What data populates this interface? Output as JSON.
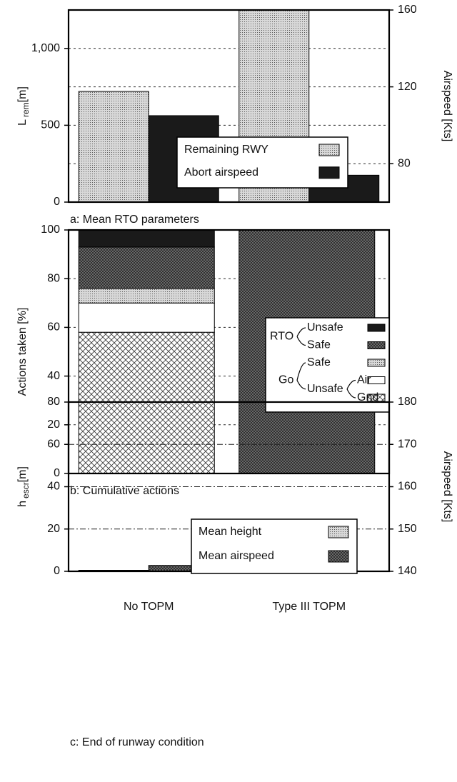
{
  "charts": [
    {
      "type": "bar",
      "caption": "a: Mean RTO parameters",
      "ylabel": "L",
      "ylabel_sub": "rem",
      "ylabel_unit": "[m]",
      "y2label": "Airspeed  [Kts]",
      "categories": [
        null,
        null
      ],
      "series": [
        {
          "name": "Remaining RWY",
          "pattern": "stipple",
          "color": "#c8c8c8",
          "values": [
            720,
            1250
          ]
        },
        {
          "name": "Abort airspeed",
          "pattern": "solid",
          "color": "#1a1a1a",
          "axis": "y2",
          "values": [
            105,
            74
          ]
        }
      ],
      "ylim": [
        0,
        1250
      ],
      "yticks": [
        0,
        500,
        {
          "value": 1000,
          "label": "1,000"
        }
      ],
      "y2lim": [
        60,
        160
      ],
      "y2ticks": [
        80,
        120,
        160
      ],
      "grid": "dotted",
      "legend": "lower-center"
    },
    {
      "type": "stacked-bar",
      "caption": "b: Cumulative actions",
      "ylabel": "Actions taken [%]",
      "categories": [
        null,
        null
      ],
      "series": [
        {
          "name": "Gnd",
          "group": "Go",
          "subgroup": "Unsafe",
          "pattern": "crosshatch",
          "color": "#ffffff",
          "values": [
            58,
            0
          ]
        },
        {
          "name": "Air",
          "group": "Go",
          "subgroup": "Unsafe",
          "pattern": "none",
          "color": "#ffffff",
          "values": [
            12,
            0
          ]
        },
        {
          "name": "Safe",
          "group": "Go",
          "pattern": "stipple",
          "color": "#dcdcdc",
          "values": [
            6,
            0
          ]
        },
        {
          "name": "Safe",
          "group": "RTO",
          "pattern": "dense",
          "color": "#6a6a6a",
          "values": [
            17,
            100
          ]
        },
        {
          "name": "Unsafe",
          "group": "RTO",
          "pattern": "solid",
          "color": "#1a1a1a",
          "values": [
            7,
            0
          ]
        }
      ],
      "ylim": [
        0,
        100
      ],
      "yticks": [
        0,
        20,
        40,
        60,
        80,
        100
      ],
      "grid": "dotted",
      "legend": "right"
    },
    {
      "type": "bar",
      "caption": "c: End of runway condition",
      "ylabel": "h",
      "ylabel_sub": "escr",
      "ylabel_unit": "[m]",
      "y2label": "Airspeed  [Kts]",
      "categories": [
        "No TOPM",
        "Type III TOPM"
      ],
      "series": [
        {
          "name": "Mean height",
          "pattern": "stipple",
          "color": "#c8c8c8",
          "values": [
            0.5,
            null
          ]
        },
        {
          "name": "Mean airspeed",
          "pattern": "dense",
          "color": "#3a3a3a",
          "axis": "y2",
          "values": [
            141.4,
            null
          ]
        }
      ],
      "ylim": [
        0,
        80
      ],
      "yticks": [
        0,
        20,
        40,
        60,
        80
      ],
      "y2lim": [
        140,
        180
      ],
      "y2ticks": [
        140,
        150,
        160,
        170,
        180
      ],
      "grid": "dashdot",
      "legend": "lower-right"
    }
  ]
}
